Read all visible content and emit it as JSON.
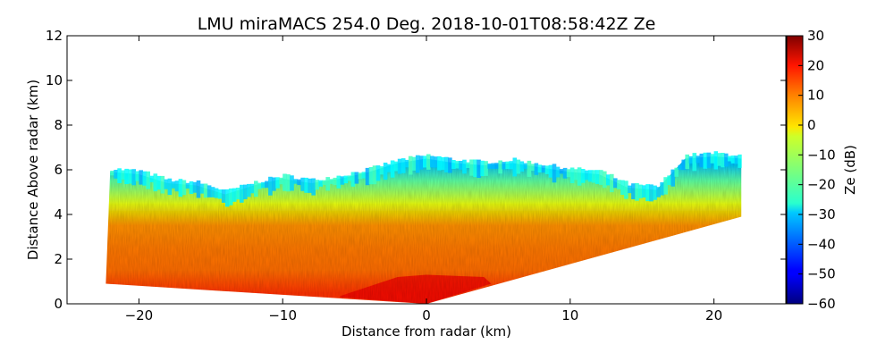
{
  "chart_data": {
    "type": "heatmap",
    "title": "LMU miraMACS 254.0 Deg. 2018-10-01T08:58:42Z  Ze",
    "xlabel": "Distance from radar (km)",
    "ylabel": "Distance Above radar  (km)",
    "xlim": [
      -25,
      25
    ],
    "ylim": [
      0,
      12
    ],
    "xticks": [
      -20,
      -10,
      0,
      10,
      20
    ],
    "xtick_labels": [
      "−20",
      "−10",
      "0",
      "10",
      "20"
    ],
    "yticks": [
      0,
      2,
      4,
      6,
      8,
      10,
      12
    ],
    "ytick_labels": [
      "0",
      "2",
      "4",
      "6",
      "8",
      "10",
      "12"
    ],
    "grid": false,
    "colorbar": {
      "label": "Ze (dB)",
      "range": [
        -60,
        30
      ],
      "ticks": [
        -60,
        -50,
        -40,
        -30,
        -20,
        -10,
        0,
        10,
        20,
        30
      ],
      "tick_labels": [
        "−60",
        "−50",
        "−40",
        "−30",
        "−20",
        "−10",
        "0",
        "10",
        "20",
        "30"
      ],
      "colormap": "jet"
    },
    "data_region": {
      "description_values_km": true,
      "left_edge": {
        "x": -22.3,
        "y_bottom": 0.9,
        "y_top": 6.0
      },
      "right_edge": {
        "x": 21.9,
        "y_bottom": 3.9,
        "y_top": 6.7
      },
      "apex": {
        "x": 0,
        "y": 0
      },
      "cloud_top_profile": [
        [
          -22,
          5.9
        ],
        [
          -20,
          5.8
        ],
        [
          -18,
          5.4
        ],
        [
          -16,
          5.3
        ],
        [
          -14,
          4.9
        ],
        [
          -12,
          5.3
        ],
        [
          -10,
          5.6
        ],
        [
          -8,
          5.4
        ],
        [
          -6,
          5.6
        ],
        [
          -4,
          5.9
        ],
        [
          -2,
          6.3
        ],
        [
          0,
          6.5
        ],
        [
          2,
          6.3
        ],
        [
          4,
          6.2
        ],
        [
          6,
          6.3
        ],
        [
          8,
          6.1
        ],
        [
          10,
          5.9
        ],
        [
          12,
          5.8
        ],
        [
          14,
          5.2
        ],
        [
          16,
          5.1
        ],
        [
          18,
          6.5
        ],
        [
          20,
          6.6
        ],
        [
          21.9,
          6.5
        ]
      ],
      "reflectivity_profile_dB": [
        {
          "height_km": 0.5,
          "Ze": 14
        },
        {
          "height_km": 1.5,
          "Ze": 9
        },
        {
          "height_km": 2.5,
          "Ze": 8
        },
        {
          "height_km": 3.5,
          "Ze": 6
        },
        {
          "height_km": 4.5,
          "Ze": -6
        },
        {
          "height_km": 5.5,
          "Ze": -18
        },
        {
          "height_km": 6.3,
          "Ze": -32
        }
      ]
    }
  }
}
